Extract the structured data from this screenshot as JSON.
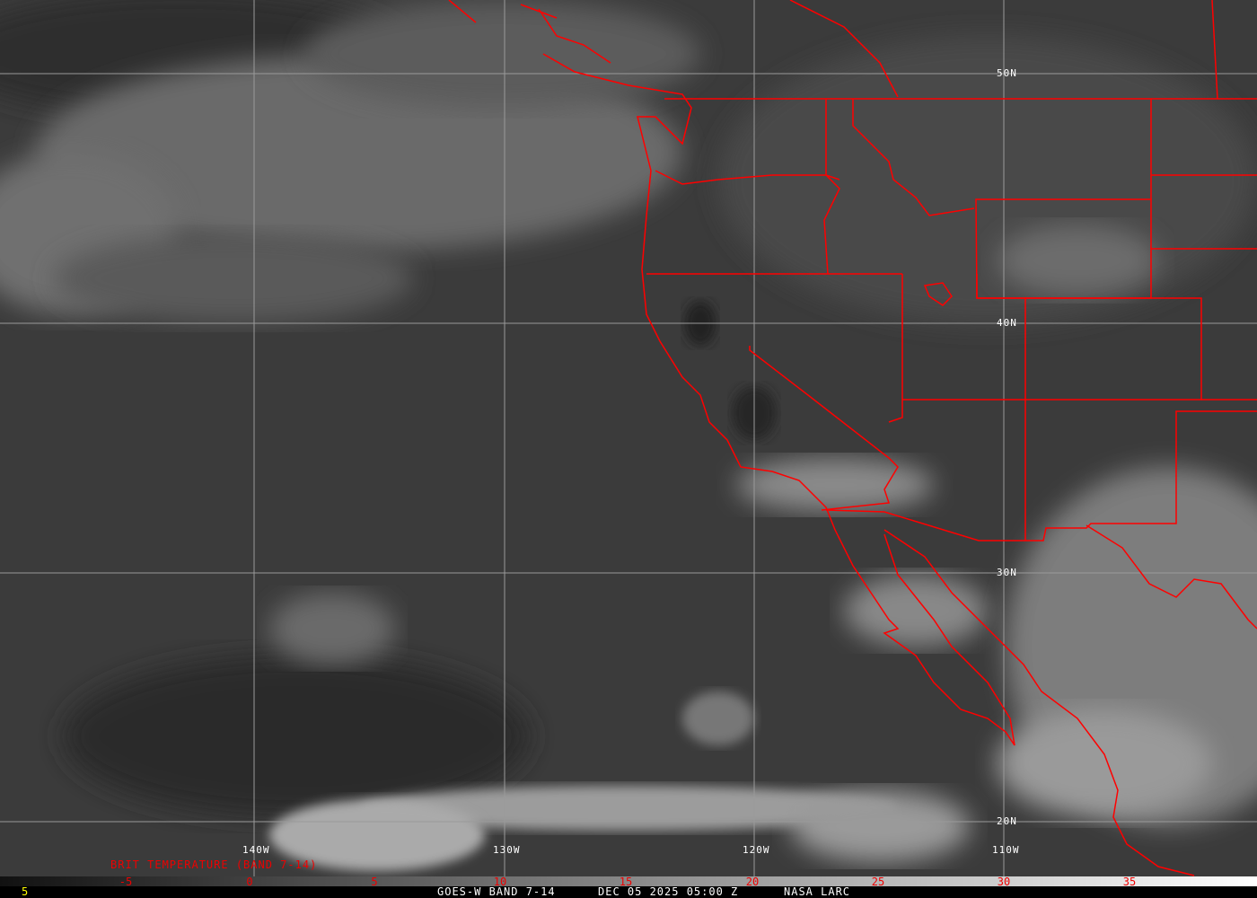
{
  "map": {
    "longitude_labels": [
      "140W",
      "130W",
      "120W",
      "110W"
    ],
    "latitude_labels": [
      "50N",
      "40N",
      "30N",
      "20N"
    ],
    "border_color": "#ff0000",
    "grid_color": "#9a9a9a"
  },
  "legend": {
    "title": "BRIT TEMPERATURE (BAND 7-14)",
    "ticks": [
      "-5",
      "0",
      "5",
      "10",
      "15",
      "20",
      "25",
      "30",
      "35"
    ],
    "range": [
      -10,
      40
    ],
    "tick_color": "#ff0000"
  },
  "footer": {
    "frame": "5",
    "satellite": "GOES-W BAND 7-14",
    "datetime": "DEC 05 2025 05:00 Z",
    "source": "NASA LARC"
  }
}
